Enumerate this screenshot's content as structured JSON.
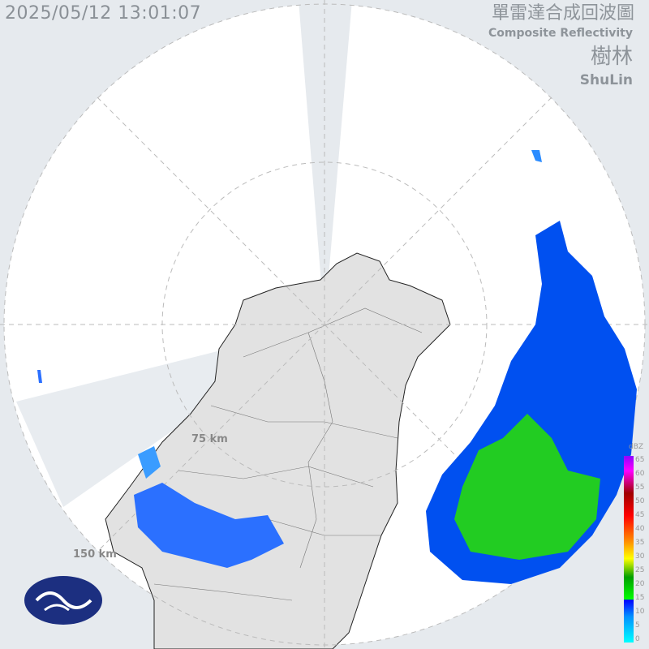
{
  "timestamp": "2025/05/12 13:01:07",
  "title_zh": "單雷達合成回波圖",
  "title_en": "Composite Reflectivity",
  "station_zh": "樹林",
  "station_en": "ShuLin",
  "range_rings": [
    "75 km",
    "150 km"
  ],
  "legend": {
    "unit": "dBZ",
    "ticks": [
      "65",
      "60",
      "55",
      "50",
      "45",
      "40",
      "35",
      "30",
      "25",
      "20",
      "15",
      "10",
      "5",
      "0"
    ]
  },
  "logo": "Central Weather Administration logo",
  "colors": {
    "background": "#e6eaee",
    "coverage": "#ffffff",
    "land": "#e0e0e0",
    "weak_echo": "#0060ff",
    "moderate_echo": "#22cc22"
  }
}
